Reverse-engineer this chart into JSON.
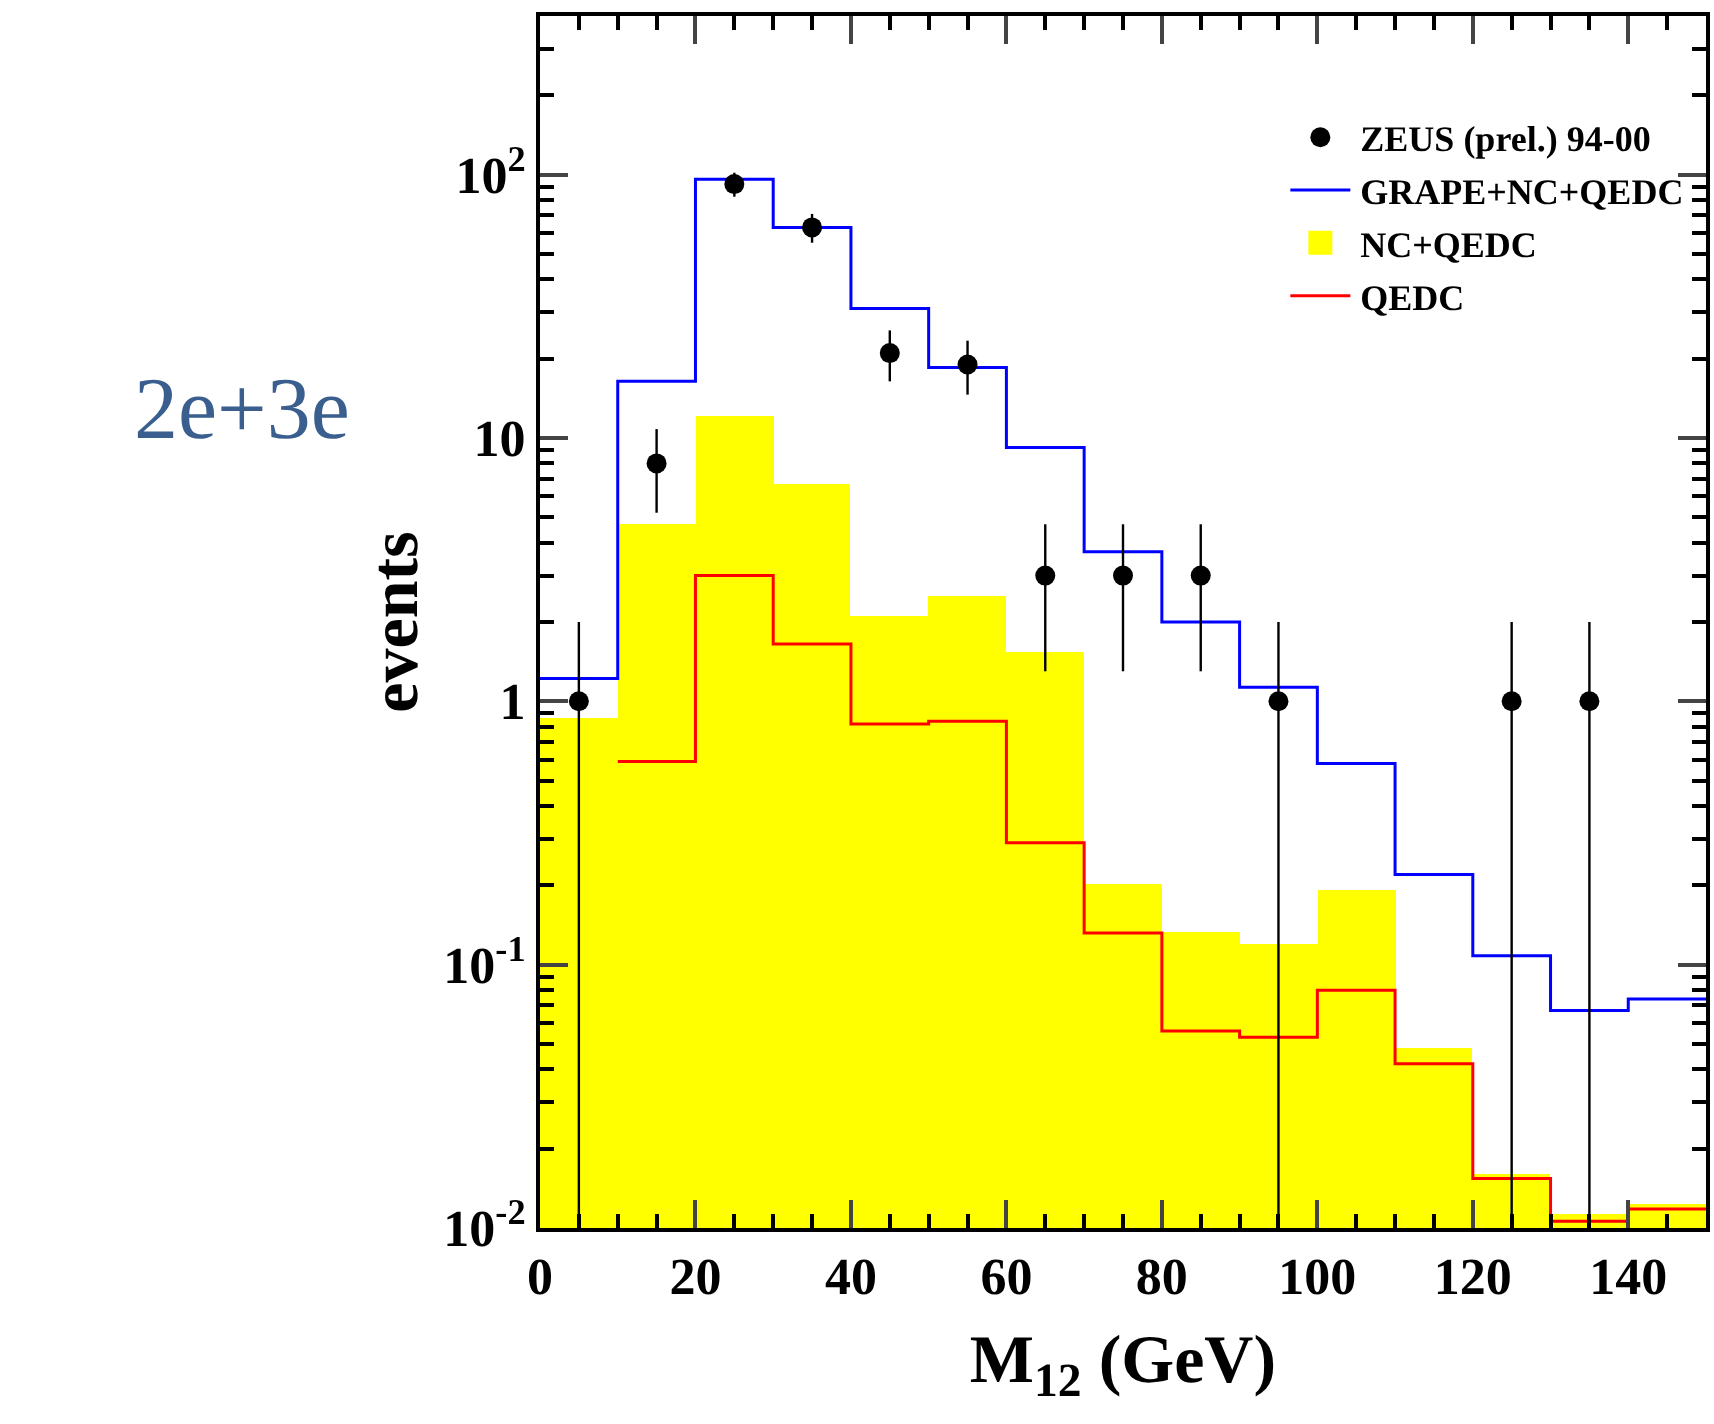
{
  "chart_data": {
    "type": "histogram",
    "xlabel": "M$_{12}$ (GeV)",
    "ylabel": "events",
    "bins": [
      0,
      10,
      20,
      30,
      40,
      50,
      60,
      70,
      80,
      90,
      100,
      110,
      120,
      130,
      140,
      150
    ],
    "series": [
      {
        "name": "ZEUS (prel.) 94-00",
        "type": "scatter",
        "color": "#000000",
        "marker": "circle",
        "x": [
          5,
          15,
          25,
          35,
          45,
          55,
          65,
          75,
          85,
          95,
          125,
          135
        ],
        "values": [
          1,
          8,
          92,
          63,
          21,
          19,
          3,
          3,
          3,
          1,
          1,
          1
        ],
        "errors": [
          [
            0.01,
            2.0
          ],
          [
            5.2,
            10.8
          ],
          [
            82.4,
            101.6
          ],
          [
            55.1,
            70.9
          ],
          [
            16.4,
            25.6
          ],
          [
            14.6,
            23.4
          ],
          [
            1.3,
            4.7
          ],
          [
            1.3,
            4.7
          ],
          [
            1.3,
            4.7
          ],
          [
            0.01,
            2.0
          ],
          [
            0.01,
            2.0
          ],
          [
            0.01,
            2.0
          ]
        ]
      },
      {
        "name": "GRAPE+NC+QEDC",
        "type": "step",
        "color": "#0000ff",
        "x": [
          0,
          10,
          20,
          30,
          40,
          50,
          60,
          70,
          80,
          90,
          100,
          110,
          120,
          130,
          140,
          150
        ],
        "values": [
          1.22,
          16.4,
          96,
          63,
          31,
          18.5,
          9.2,
          3.7,
          2.0,
          1.13,
          0.58,
          0.22,
          0.108,
          0.067,
          0.074,
          0.074
        ]
      },
      {
        "name": "NC+QEDC",
        "type": "histogram",
        "color": "#ffff00",
        "values": [
          0.86,
          4.7,
          12.2,
          6.7,
          2.1,
          2.5,
          1.54,
          0.203,
          0.133,
          0.12,
          0.193,
          0.048,
          0.016,
          0.0113,
          0.0124
        ]
      },
      {
        "name": "QEDC",
        "type": "step",
        "color": "#ff0000",
        "x": [
          10,
          20,
          30,
          40,
          50,
          60,
          70,
          80,
          90,
          100,
          110,
          120,
          130,
          140,
          150
        ],
        "values": [
          0.59,
          3.0,
          1.65,
          0.82,
          0.84,
          0.29,
          0.132,
          0.056,
          0.053,
          0.08,
          0.042,
          0.0154,
          0.0106,
          0.0118,
          0.0118
        ]
      }
    ],
    "log": "y",
    "xlim": [
      0,
      150
    ],
    "xticks": [
      0,
      20,
      40,
      60,
      80,
      100,
      120,
      140
    ],
    "ylim": [
      0.01,
      400
    ],
    "yticks": [
      {
        "value": 0.01,
        "label": "10$^{-2}$"
      },
      {
        "value": 0.1,
        "label": "10$^{-1}$"
      },
      1,
      10,
      {
        "value": 100,
        "label": "10$^{2}$"
      }
    ],
    "legend": "top right",
    "annotations": [
      "2e+3e"
    ]
  }
}
